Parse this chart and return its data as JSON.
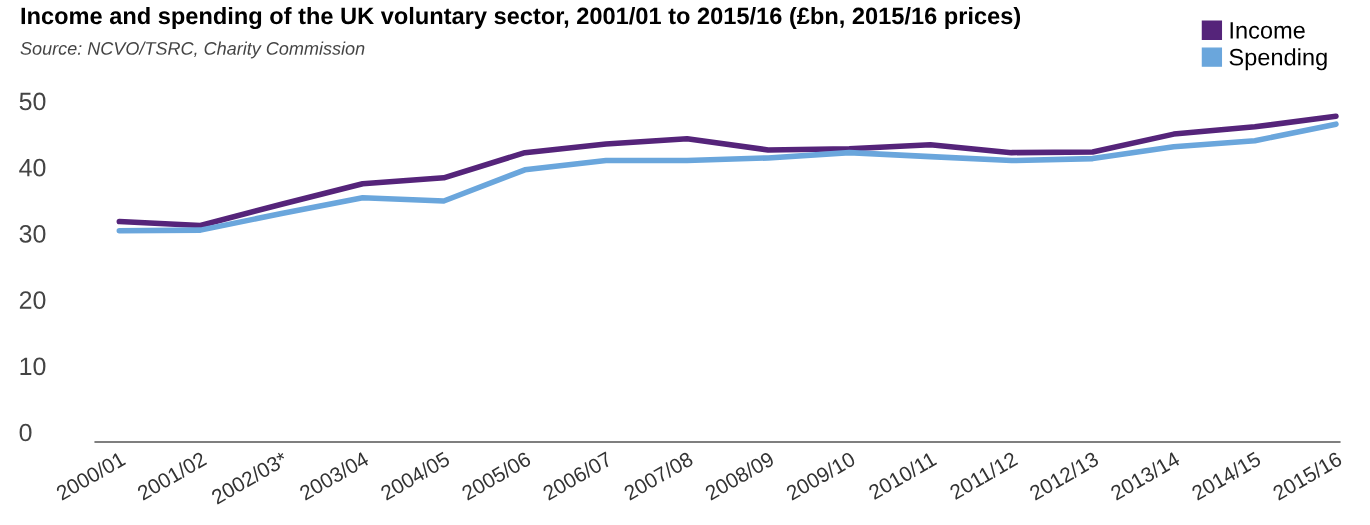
{
  "chart_data": {
    "type": "line",
    "title": "Income and spending of the UK voluntary sector, 2001/01 to 2015/16 (£bn, 2015/16 prices)",
    "annotations": [
      "Source: NCVO/TSRC, Charity Commission"
    ],
    "categories": [
      "2000/01",
      "2001/02",
      "2002/03*",
      "2003/04",
      "2004/05",
      "2005/06",
      "2006/07",
      "2007/08",
      "2008/09",
      "2009/10",
      "2010/11",
      "2011/12",
      "2012/13",
      "2013/14",
      "2014/15",
      "2015/16"
    ],
    "series": [
      {
        "name": "Income",
        "color": "#55247a",
        "values": [
          31.8,
          31.2,
          34.4,
          37.5,
          38.4,
          42.2,
          43.5,
          44.3,
          42.6,
          42.8,
          43.4,
          42.2,
          42.3,
          45.0,
          46.1,
          47.7
        ]
      },
      {
        "name": "Spending",
        "color": "#6aa6dc",
        "values": [
          30.4,
          30.5,
          33.0,
          35.4,
          34.9,
          39.6,
          41.0,
          41.0,
          41.4,
          42.2,
          41.6,
          41.0,
          41.3,
          43.1,
          44.0,
          46.5
        ]
      }
    ],
    "ylim": [
      -1.5,
      50
    ],
    "yticks": [
      0,
      10,
      20,
      30,
      40,
      50
    ],
    "grid": false,
    "legend": "top right",
    "marker": "none",
    "line_style": "solid"
  }
}
